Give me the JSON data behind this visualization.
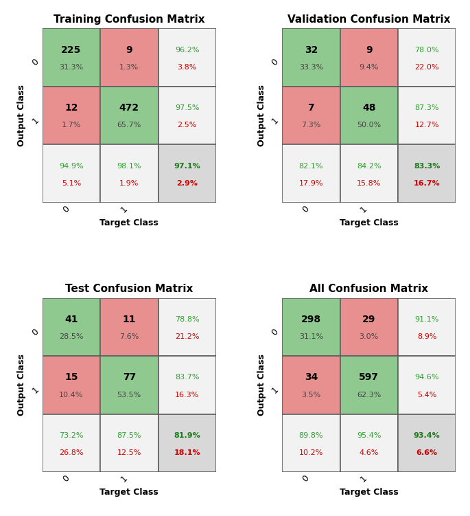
{
  "matrices": [
    {
      "title": "Training Confusion Matrix",
      "counts": [
        [
          "225",
          "9"
        ],
        [
          "12",
          "472"
        ]
      ],
      "count_pcts": [
        [
          "31.3%",
          "1.3%"
        ],
        [
          "1.7%",
          "65.7%"
        ]
      ],
      "row_pcts": [
        [
          "96.2%",
          "3.8%"
        ],
        [
          "97.5%",
          "2.5%"
        ]
      ],
      "col_pcts": [
        [
          "94.9%",
          "5.1%"
        ],
        [
          "98.1%",
          "1.9%"
        ]
      ],
      "overall": [
        "97.1%",
        "2.9%"
      ]
    },
    {
      "title": "Validation Confusion Matrix",
      "counts": [
        [
          "32",
          "9"
        ],
        [
          "7",
          "48"
        ]
      ],
      "count_pcts": [
        [
          "33.3%",
          "9.4%"
        ],
        [
          "7.3%",
          "50.0%"
        ]
      ],
      "row_pcts": [
        [
          "78.0%",
          "22.0%"
        ],
        [
          "87.3%",
          "12.7%"
        ]
      ],
      "col_pcts": [
        [
          "82.1%",
          "17.9%"
        ],
        [
          "84.2%",
          "15.8%"
        ]
      ],
      "overall": [
        "83.3%",
        "16.7%"
      ]
    },
    {
      "title": "Test Confusion Matrix",
      "counts": [
        [
          "41",
          "11"
        ],
        [
          "15",
          "77"
        ]
      ],
      "count_pcts": [
        [
          "28.5%",
          "7.6%"
        ],
        [
          "10.4%",
          "53.5%"
        ]
      ],
      "row_pcts": [
        [
          "78.8%",
          "21.2%"
        ],
        [
          "83.7%",
          "16.3%"
        ]
      ],
      "col_pcts": [
        [
          "73.2%",
          "26.8%"
        ],
        [
          "87.5%",
          "12.5%"
        ]
      ],
      "overall": [
        "81.9%",
        "18.1%"
      ]
    },
    {
      "title": "All Confusion Matrix",
      "counts": [
        [
          "298",
          "29"
        ],
        [
          "34",
          "597"
        ]
      ],
      "count_pcts": [
        [
          "31.1%",
          "3.0%"
        ],
        [
          "3.5%",
          "62.3%"
        ]
      ],
      "row_pcts": [
        [
          "91.1%",
          "8.9%"
        ],
        [
          "94.6%",
          "5.4%"
        ]
      ],
      "col_pcts": [
        [
          "89.8%",
          "10.2%"
        ],
        [
          "95.4%",
          "4.6%"
        ]
      ],
      "overall": [
        "93.4%",
        "6.6%"
      ]
    }
  ],
  "cell_colors": [
    [
      "#90c990",
      "#e89090",
      "#f2f2f2"
    ],
    [
      "#e89090",
      "#90c990",
      "#f2f2f2"
    ],
    [
      "#f2f2f2",
      "#f2f2f2",
      "#d8d8d8"
    ]
  ],
  "green_color": "#2ca02c",
  "red_color": "#cc0000",
  "bold_green": "#1a7a1a",
  "bold_red": "#cc0000",
  "cell_edge_color": "#606060",
  "title_fontsize": 11,
  "label_fontsize": 9,
  "count_fontsize": 10,
  "pct_fontsize": 8,
  "summary_fontsize": 8,
  "ylabel": "Output Class",
  "xlabel": "Target Class",
  "row_labels": [
    "0",
    "1"
  ],
  "col_labels": [
    "0",
    "1"
  ]
}
